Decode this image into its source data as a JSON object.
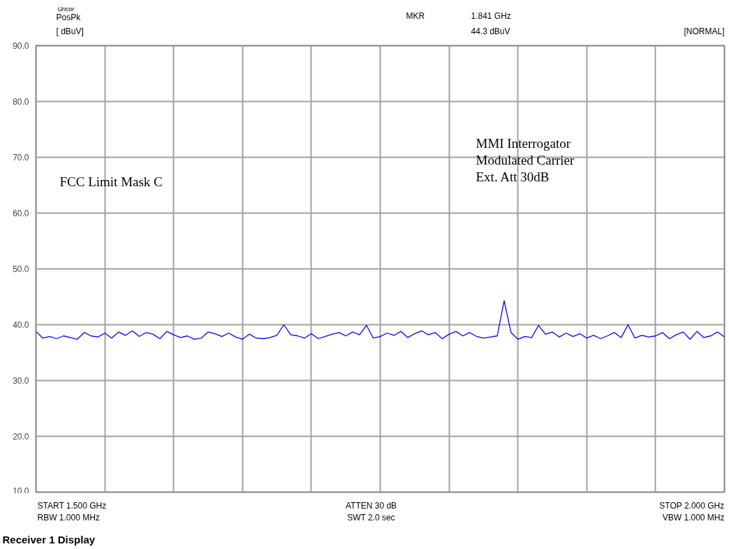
{
  "chart_data": {
    "type": "line",
    "title": "Receiver 1 Display",
    "ylabel": "[ dBuV]",
    "categories": [
      null,
      null,
      null,
      null,
      null,
      null,
      null,
      null,
      null,
      null,
      null,
      null,
      null,
      null,
      null,
      null,
      null,
      null,
      null,
      null,
      null,
      null,
      null,
      null,
      null,
      null,
      null,
      null,
      null,
      null,
      null,
      null,
      null,
      null,
      null,
      null,
      null,
      null,
      null,
      null,
      null,
      null,
      null,
      null,
      null,
      null,
      null,
      null,
      null,
      null,
      null,
      null,
      null,
      null,
      null,
      null,
      null,
      null,
      null,
      null,
      null,
      null,
      null,
      null,
      null,
      null,
      null,
      null,
      null,
      null,
      null,
      null,
      null,
      null,
      null,
      null,
      null,
      null,
      null,
      null,
      null,
      null,
      null,
      null,
      null,
      null,
      null,
      null,
      null,
      null,
      null,
      null,
      null,
      null,
      null,
      null,
      null,
      null,
      null,
      null,
      null
    ],
    "ylim": [
      10,
      90
    ],
    "yticks": [
      {
        "value": 10,
        "label": "10.0"
      },
      {
        "value": 20,
        "label": "20.0"
      },
      {
        "value": 30,
        "label": "30.0"
      },
      {
        "value": 40,
        "label": "40.0"
      },
      {
        "value": 50,
        "label": "50.0"
      },
      {
        "value": 60,
        "label": "60.0"
      },
      {
        "value": 70,
        "label": "70.0"
      },
      {
        "value": 80,
        "label": "80.0"
      },
      {
        "value": 90,
        "label": "90.0"
      }
    ],
    "tick_labels": "y",
    "grid": true,
    "line_style": "solid",
    "annotations": [
      "Uncor",
      "PosPk",
      "MKR  1.841 GHz\n44.3 dBuV",
      "[NORMAL]",
      "FCC Limit Mask C",
      "MMI Interrogator\nModulated Carrier\nExt. Att 30dB",
      "START 1.500 GHz\nRBW 1.000 MHz",
      "ATTEN 30 dB\nSWT 2.0 sec",
      "STOP 2.000 GHz\nVBW 1.000 MHz"
    ],
    "series": [
      {
        "color": "#0000ff",
        "values": [
          38.8,
          37.6,
          37.9,
          37.5,
          38.0,
          37.7,
          37.4,
          38.6,
          38.0,
          37.8,
          38.5,
          37.6,
          38.7,
          38.1,
          38.9,
          37.9,
          38.6,
          38.3,
          37.5,
          38.8,
          38.2,
          37.7,
          38.0,
          37.4,
          37.6,
          38.7,
          38.4,
          37.9,
          38.5,
          37.8,
          37.4,
          38.3,
          37.6,
          37.5,
          37.7,
          38.1,
          40.0,
          38.2,
          38.0,
          37.6,
          38.4,
          37.5,
          37.9,
          38.3,
          38.6,
          38.0,
          38.7,
          38.2,
          39.9,
          37.6,
          37.9,
          38.5,
          38.1,
          38.8,
          37.7,
          38.4,
          38.9,
          38.2,
          38.6,
          37.5,
          38.3,
          38.8,
          38.0,
          38.6,
          37.9,
          37.6,
          37.8,
          38.0,
          44.3,
          38.6,
          37.4,
          37.9,
          37.7,
          39.9,
          38.3,
          38.7,
          37.8,
          38.5,
          37.9,
          38.4,
          37.6,
          38.1,
          37.5,
          38.0,
          38.6,
          37.7,
          40.0,
          37.6,
          38.1,
          37.8,
          38.0,
          38.6,
          37.5,
          38.2,
          38.7,
          37.4,
          38.8,
          37.7,
          38.0,
          38.7,
          37.8
        ]
      }
    ]
  }
}
